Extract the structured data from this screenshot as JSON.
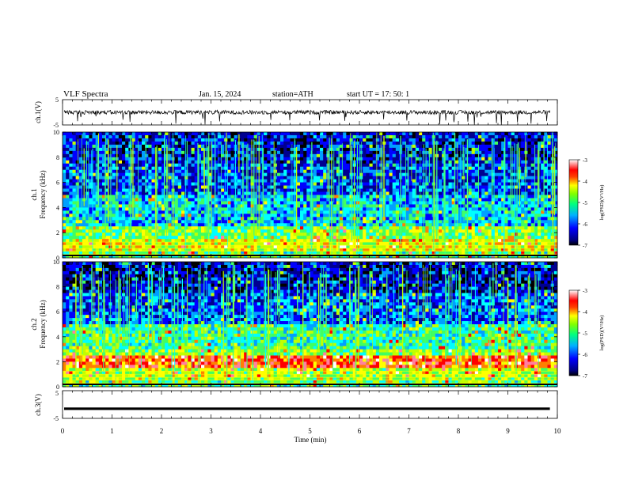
{
  "header": {
    "title": "VLF  Spectra",
    "date": "Jan. 15, 2024",
    "station": "station=ATH",
    "start": "start  UT  =   17: 50: 1"
  },
  "chart_data": [
    {
      "type": "line",
      "name": "ch1-waveform",
      "ylabel": "ch.1(V)",
      "ylim": [
        -5,
        5
      ],
      "yticks": [
        "5",
        "-5"
      ],
      "xlim": [
        0,
        10
      ],
      "baseline": 0
    },
    {
      "type": "heatmap",
      "name": "ch1-spectrogram",
      "ylabel": "ch.1",
      "ylabel2": "Frequency  (kHz)",
      "ylim": [
        0,
        10
      ],
      "yticks": [
        "0",
        "2",
        "4",
        "6",
        "8",
        "10"
      ],
      "xlim": [
        0,
        10.0
      ],
      "colorbar": {
        "label": "log(PSD)(V²/Hz)",
        "ticks": [
          "-3",
          "-4",
          "-5",
          "-6",
          "-7"
        ],
        "range": [
          -7,
          -3
        ]
      }
    },
    {
      "type": "heatmap",
      "name": "ch2-spectrogram",
      "ylabel": "ch.2",
      "ylabel2": "Frequency  (kHz)",
      "ylim": [
        0,
        10
      ],
      "yticks": [
        "0",
        "2",
        "4",
        "6",
        "8",
        "10"
      ],
      "xlim": [
        0,
        10.0
      ],
      "colorbar": {
        "label": "log(PSD)(V²/Hz)",
        "ticks": [
          "-3",
          "-4",
          "-5",
          "-6",
          "-7"
        ],
        "range": [
          -7,
          -3
        ]
      }
    },
    {
      "type": "line",
      "name": "ch3-waveform",
      "ylabel": "ch.3(V)",
      "ylim": [
        -5,
        5
      ],
      "yticks": [
        "5",
        "-5"
      ],
      "xlim": [
        0,
        10
      ],
      "baseline": -1.5
    }
  ],
  "xaxis": {
    "label": "Time  (min)",
    "ticks": [
      "0",
      "1",
      "2",
      "3",
      "4",
      "5",
      "6",
      "7",
      "8",
      "9",
      "10"
    ]
  },
  "colors": {
    "palette": [
      "#000000",
      "#000090",
      "#0000ff",
      "#00a0ff",
      "#00ffff",
      "#40ff60",
      "#c0ff00",
      "#ffff00",
      "#ff8000",
      "#ff0000",
      "#ff80a0",
      "#ffffff"
    ]
  }
}
